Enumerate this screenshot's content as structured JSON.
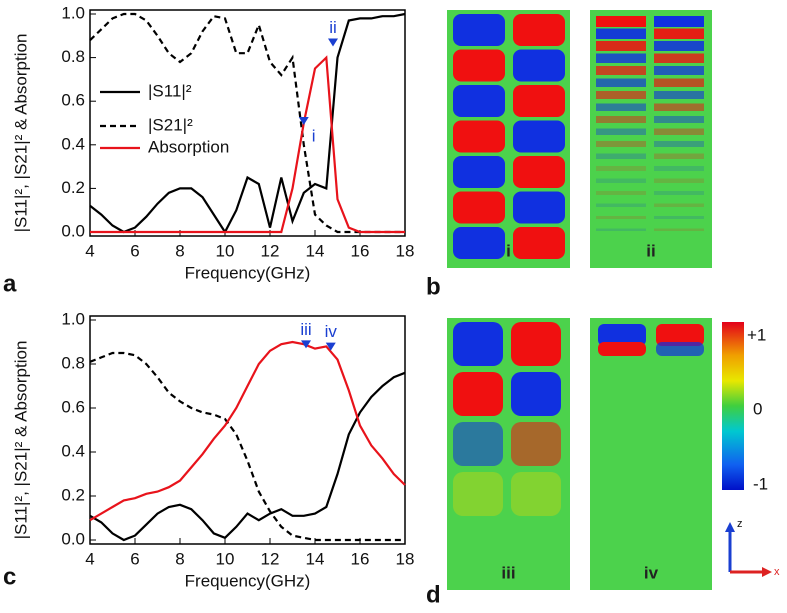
{
  "chart_data": [
    {
      "type": "line",
      "x_label": "Frequency(GHz)",
      "y_label": "|S11|², |S21|² & Absorption",
      "panel": "a",
      "x": [
        4,
        4.5,
        5,
        5.5,
        6,
        6.5,
        7,
        7.5,
        8,
        8.5,
        9,
        9.5,
        10,
        10.5,
        11,
        11.5,
        12,
        12.5,
        13,
        13.5,
        14,
        14.5,
        15,
        15.5,
        16,
        16.5,
        17,
        17.5,
        18
      ],
      "series": [
        {
          "name": "|S11|²",
          "color": "#000000",
          "style": "solid",
          "values": [
            0.12,
            0.08,
            0.03,
            0.0,
            0.02,
            0.07,
            0.13,
            0.18,
            0.2,
            0.2,
            0.16,
            0.08,
            0.0,
            0.1,
            0.25,
            0.22,
            0.02,
            0.25,
            0.05,
            0.18,
            0.22,
            0.2,
            0.8,
            0.97,
            0.98,
            0.98,
            0.99,
            0.99,
            1.0
          ]
        },
        {
          "name": "|S21|²",
          "color": "#000000",
          "style": "dashed",
          "values": [
            0.88,
            0.93,
            0.98,
            1.0,
            1.0,
            0.97,
            0.9,
            0.82,
            0.78,
            0.82,
            0.92,
            0.99,
            0.98,
            0.82,
            0.82,
            0.95,
            0.78,
            0.72,
            0.8,
            0.4,
            0.08,
            0.03,
            0.0,
            0.0,
            0.0,
            0.0,
            0.0,
            0.0,
            0.0
          ]
        },
        {
          "name": "Absorption",
          "color": "#e8131b",
          "style": "solid",
          "values": [
            0,
            0,
            0,
            0,
            0,
            0,
            0,
            0,
            0,
            0,
            0,
            0,
            0,
            0,
            0,
            0,
            0,
            0,
            0.2,
            0.5,
            0.75,
            0.8,
            0.15,
            0.02,
            0,
            0,
            0,
            0,
            0
          ]
        }
      ],
      "annotations": [
        {
          "text": "i",
          "x": 13.5,
          "y": 0.5
        },
        {
          "text": "ii",
          "x": 14.8,
          "y": 0.86
        }
      ],
      "xlim": [
        4,
        18
      ],
      "xticks": [
        4,
        6,
        8,
        10,
        12,
        14,
        16,
        18
      ],
      "ylim": [
        0,
        1
      ],
      "yticks": [
        {
          "value": 0,
          "label": "0.0"
        },
        0.2,
        0.4,
        0.6,
        0.8,
        {
          "value": 1,
          "label": "1.0"
        }
      ],
      "legend": "left"
    },
    {
      "type": "line",
      "x_label": "Frequency(GHz)",
      "y_label": "|S11|², |S21|² & Absorption",
      "panel": "c",
      "x": [
        4,
        4.5,
        5,
        5.5,
        6,
        6.5,
        7,
        7.5,
        8,
        8.5,
        9,
        9.5,
        10,
        10.5,
        11,
        11.5,
        12,
        12.5,
        13,
        13.5,
        14,
        14.5,
        15,
        15.5,
        16,
        16.5,
        17,
        17.5,
        18
      ],
      "series": [
        {
          "color": "#000000",
          "style": "solid",
          "values": [
            0.11,
            0.08,
            0.03,
            0.0,
            0.02,
            0.07,
            0.12,
            0.15,
            0.16,
            0.14,
            0.09,
            0.03,
            0.01,
            0.06,
            0.12,
            0.09,
            0.12,
            0.14,
            0.11,
            0.11,
            0.12,
            0.15,
            0.3,
            0.48,
            0.58,
            0.65,
            0.7,
            0.74,
            0.76
          ]
        },
        {
          "color": "#000000",
          "style": "dashed",
          "values": [
            0.81,
            0.83,
            0.85,
            0.85,
            0.84,
            0.8,
            0.74,
            0.67,
            0.63,
            0.6,
            0.58,
            0.57,
            0.55,
            0.48,
            0.36,
            0.22,
            0.13,
            0.06,
            0.02,
            0.01,
            0,
            0,
            0,
            0,
            0,
            0,
            0,
            0,
            0
          ]
        },
        {
          "color": "#e8131b",
          "style": "solid",
          "values": [
            0.09,
            0.12,
            0.15,
            0.18,
            0.19,
            0.21,
            0.22,
            0.24,
            0.27,
            0.33,
            0.39,
            0.46,
            0.52,
            0.6,
            0.7,
            0.8,
            0.86,
            0.89,
            0.9,
            0.89,
            0.87,
            0.88,
            0.82,
            0.68,
            0.52,
            0.43,
            0.37,
            0.3,
            0.25
          ]
        }
      ],
      "annotations": [
        {
          "text": "iii",
          "x": 13.6,
          "y": 0.88
        },
        {
          "text": "iv",
          "x": 14.7,
          "y": 0.87
        }
      ],
      "xlim": [
        4,
        18
      ],
      "xticks": [
        4,
        6,
        8,
        10,
        12,
        14,
        16,
        18
      ],
      "ylim": [
        0,
        1
      ],
      "yticks": [
        {
          "value": 0,
          "label": "0.0"
        },
        0.2,
        0.4,
        0.6,
        0.8,
        {
          "value": 1,
          "label": "1.0"
        }
      ]
    }
  ],
  "panels": {
    "b": "b",
    "d": "d"
  },
  "maps": [
    "i",
    "ii",
    "iii",
    "iv"
  ],
  "colorbar": {
    "max": "+1",
    "mid": "0",
    "min": "-1"
  },
  "axes_icon": {
    "z": "z",
    "x": "x"
  }
}
